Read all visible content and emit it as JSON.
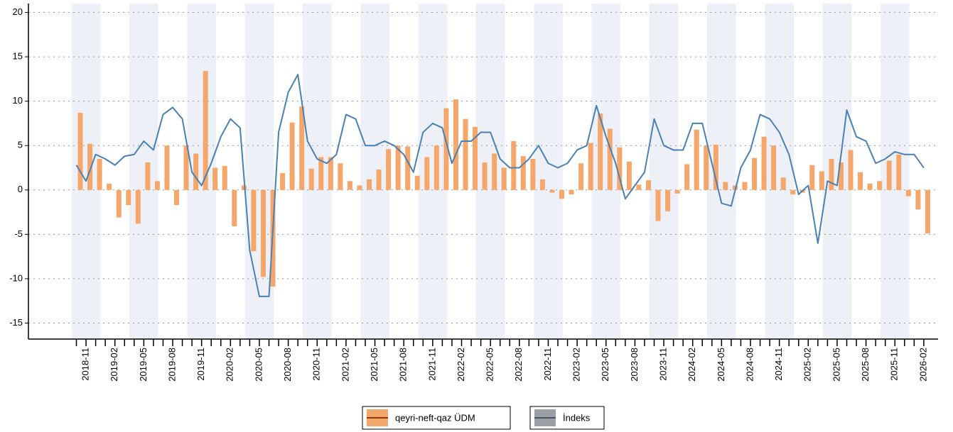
{
  "chart_data": {
    "type": "bar-line",
    "categories": [
      null,
      "2018-11",
      null,
      null,
      "2019-02",
      null,
      null,
      "2019-05",
      null,
      null,
      "2019-08",
      null,
      null,
      "2019-11",
      null,
      null,
      "2020-02",
      null,
      null,
      "2020-05",
      null,
      null,
      "2020-08",
      null,
      null,
      "2020-11",
      null,
      null,
      "2021-02",
      null,
      null,
      "2021-05",
      null,
      null,
      "2021-08",
      null,
      null,
      "2021-11",
      null,
      null,
      "2022-02",
      null,
      null,
      "2022-05",
      null,
      null,
      "2022-08",
      null,
      null,
      "2022-11",
      null,
      null,
      "2023-02",
      null,
      null,
      "2023-05",
      null,
      null,
      "2023-08",
      null,
      null,
      "2023-11",
      null,
      null,
      "2024-02",
      null,
      null,
      "2024-05",
      null,
      null,
      "2024-08",
      null,
      null,
      "2024-11",
      null,
      null,
      "2025-02",
      null,
      null,
      "2025-05",
      null,
      null,
      "2025-08",
      null,
      null,
      "2025-11",
      null,
      null,
      "2026-02"
    ],
    "series": [
      {
        "name": "qeyri-neft-qaz ÜDM",
        "type": "bar",
        "color": "#f5a66b",
        "values": [
          8.7,
          5.2,
          3.5,
          0.7,
          -3.1,
          -1.7,
          -3.8,
          3.1,
          1.0,
          5.0,
          -1.7,
          5.0,
          4.1,
          13.4,
          2.5,
          2.7,
          -4.1,
          0.5,
          -6.9,
          -9.8,
          -10.9,
          1.9,
          7.6,
          9.4,
          2.4,
          3.7,
          3.7,
          3.0,
          1.0,
          0.5,
          1.2,
          2.3,
          4.6,
          5.0,
          4.9,
          1.6,
          3.7,
          5.0,
          9.2,
          10.2,
          8.0,
          7.1,
          3.1,
          4.1,
          2.5,
          5.5,
          3.8,
          3.5,
          1.2,
          -0.3,
          -1.0,
          -0.5,
          3.0,
          5.3,
          8.6,
          6.9,
          4.8,
          3.2,
          0.6,
          1.1,
          -3.5,
          -2.4,
          -0.4,
          2.9,
          6.8,
          5.0,
          5.1,
          0.9,
          0.5,
          0.9,
          3.6,
          6.0,
          5.0,
          1.4,
          -0.5,
          -0.3,
          2.8,
          2.1,
          3.5,
          3.1,
          4.5,
          2.0,
          0.7,
          1.0,
          3.3,
          4.0,
          -0.7,
          -2.2,
          -4.9
        ]
      },
      {
        "name": "İndeks",
        "type": "line",
        "color": "#4a80b4",
        "values": [
          2.8,
          1.0,
          4.0,
          3.5,
          2.8,
          3.8,
          4.0,
          5.5,
          4.5,
          8.5,
          9.3,
          8.0,
          2.0,
          0.5,
          3.0,
          6.0,
          8.0,
          7.0,
          -6.8,
          -12.0,
          -12.0,
          6.5,
          11.0,
          13.0,
          5.5,
          3.5,
          3.0,
          4.0,
          8.5,
          8.0,
          5.0,
          5.0,
          5.5,
          5.0,
          4.0,
          2.0,
          6.5,
          7.5,
          7.0,
          3.0,
          5.5,
          5.5,
          6.5,
          6.5,
          3.5,
          2.5,
          2.5,
          3.5,
          5.0,
          3.0,
          2.5,
          3.0,
          4.5,
          5.0,
          9.5,
          6.0,
          3.0,
          -1.0,
          0.5,
          2.0,
          8.0,
          5.0,
          4.5,
          4.5,
          7.5,
          7.5,
          3.0,
          -1.5,
          -1.8,
          2.5,
          4.5,
          8.5,
          8.0,
          6.5,
          4.0,
          -0.5,
          0.5,
          -6.0,
          1.0,
          0.5,
          9.0,
          6.0,
          5.5,
          3.0,
          3.5,
          4.3,
          4.0,
          4.0,
          2.5
        ]
      }
    ],
    "ylim": [
      -16.8,
      21
    ],
    "yticks": [
      -15,
      -10,
      -5,
      0,
      5,
      10,
      15,
      20
    ],
    "grid": true,
    "legend": "bottom"
  }
}
